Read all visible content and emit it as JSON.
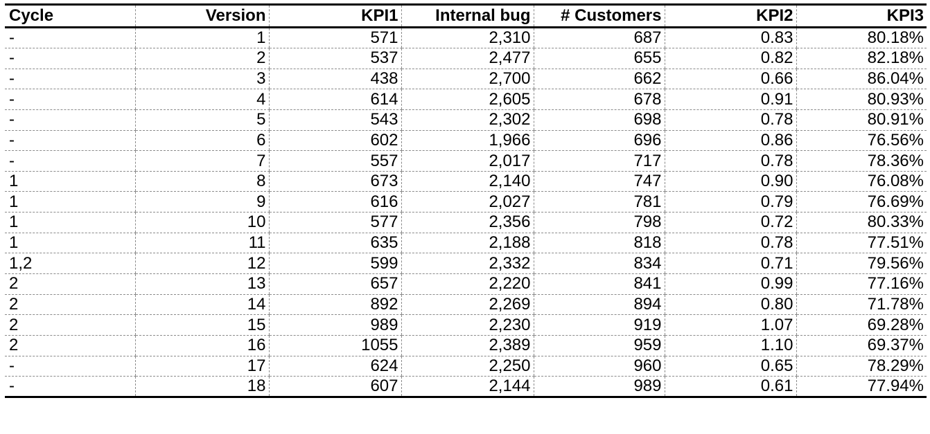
{
  "table": {
    "headers": [
      "Cycle",
      "Version",
      "KPI1",
      "Internal bug",
      "# Customers",
      "KPI2",
      "KPI3"
    ],
    "rows": [
      [
        "-",
        "1",
        "571",
        "2,310",
        "687",
        "0.83",
        "80.18%"
      ],
      [
        "-",
        "2",
        "537",
        "2,477",
        "655",
        "0.82",
        "82.18%"
      ],
      [
        "-",
        "3",
        "438",
        "2,700",
        "662",
        "0.66",
        "86.04%"
      ],
      [
        "-",
        "4",
        "614",
        "2,605",
        "678",
        "0.91",
        "80.93%"
      ],
      [
        "-",
        "5",
        "543",
        "2,302",
        "698",
        "0.78",
        "80.91%"
      ],
      [
        "-",
        "6",
        "602",
        "1,966",
        "696",
        "0.86",
        "76.56%"
      ],
      [
        "-",
        "7",
        "557",
        "2,017",
        "717",
        "0.78",
        "78.36%"
      ],
      [
        "1",
        "8",
        "673",
        "2,140",
        "747",
        "0.90",
        "76.08%"
      ],
      [
        "1",
        "9",
        "616",
        "2,027",
        "781",
        "0.79",
        "76.69%"
      ],
      [
        "1",
        "10",
        "577",
        "2,356",
        "798",
        "0.72",
        "80.33%"
      ],
      [
        "1",
        "11",
        "635",
        "2,188",
        "818",
        "0.78",
        "77.51%"
      ],
      [
        "1,2",
        "12",
        "599",
        "2,332",
        "834",
        "0.71",
        "79.56%"
      ],
      [
        "2",
        "13",
        "657",
        "2,220",
        "841",
        "0.99",
        "77.16%"
      ],
      [
        "2",
        "14",
        "892",
        "2,269",
        "894",
        "0.80",
        "71.78%"
      ],
      [
        "2",
        "15",
        "989",
        "2,230",
        "919",
        "1.07",
        "69.28%"
      ],
      [
        "2",
        "16",
        "1055",
        "2,389",
        "959",
        "1.10",
        "69.37%"
      ],
      [
        "-",
        "17",
        "624",
        "2,250",
        "960",
        "0.65",
        "78.29%"
      ],
      [
        "-",
        "18",
        "607",
        "2,144",
        "989",
        "0.61",
        "77.94%"
      ]
    ]
  }
}
